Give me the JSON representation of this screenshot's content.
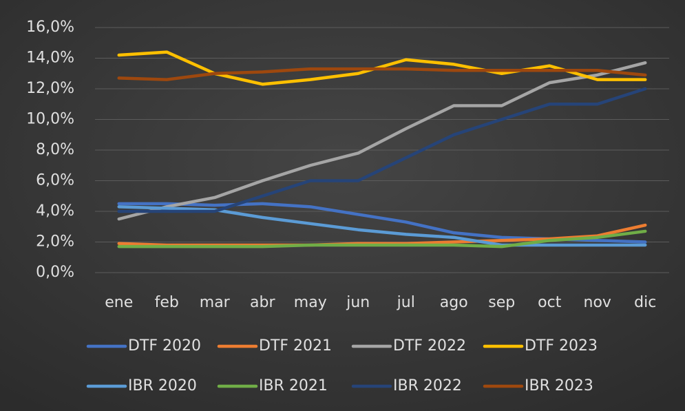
{
  "chart_data": {
    "type": "line",
    "categories": [
      "ene",
      "feb",
      "mar",
      "abr",
      "may",
      "jun",
      "jul",
      "ago",
      "sep",
      "oct",
      "nov",
      "dic"
    ],
    "series": [
      {
        "name": "DTF 2020",
        "color": "#4472c4",
        "values": [
          4.5,
          4.5,
          4.4,
          4.5,
          4.3,
          3.8,
          3.3,
          2.6,
          2.3,
          2.2,
          2.1,
          2.0
        ]
      },
      {
        "name": "DTF 2021",
        "color": "#ed7d31",
        "values": [
          1.9,
          1.8,
          1.8,
          1.8,
          1.8,
          1.9,
          1.9,
          2.0,
          2.1,
          2.2,
          2.4,
          3.1
        ]
      },
      {
        "name": "DTF 2022",
        "color": "#a5a5a5",
        "values": [
          3.5,
          4.3,
          4.9,
          6.0,
          7.0,
          7.8,
          9.4,
          10.9,
          10.9,
          12.4,
          12.9,
          13.7
        ]
      },
      {
        "name": "DTF 2023",
        "color": "#ffc000",
        "values": [
          14.2,
          14.4,
          13.0,
          12.3,
          12.6,
          13.0,
          13.9,
          13.6,
          13.0,
          13.5,
          12.6,
          12.6
        ]
      },
      {
        "name": "IBR 2020",
        "color": "#5b9bd5",
        "values": [
          4.3,
          4.2,
          4.1,
          3.6,
          3.2,
          2.8,
          2.5,
          2.3,
          1.8,
          1.8,
          1.8,
          1.8
        ]
      },
      {
        "name": "IBR 2021",
        "color": "#70ad47",
        "values": [
          1.7,
          1.7,
          1.7,
          1.7,
          1.8,
          1.8,
          1.8,
          1.8,
          1.7,
          2.1,
          2.3,
          2.7
        ]
      },
      {
        "name": "IBR 2022",
        "color": "#264478",
        "values": [
          4.0,
          4.0,
          4.0,
          5.0,
          6.0,
          6.0,
          7.5,
          9.0,
          10.0,
          11.0,
          11.0,
          12.0
        ]
      },
      {
        "name": "IBR 2023",
        "color": "#9e480e",
        "values": [
          12.7,
          12.6,
          13.0,
          13.1,
          13.3,
          13.3,
          13.3,
          13.2,
          13.2,
          13.2,
          13.2,
          12.9
        ]
      }
    ],
    "ylim": [
      0,
      16
    ],
    "yticks": [
      {
        "value": 0,
        "label": "0,0%"
      },
      {
        "value": 2,
        "label": "2,0%"
      },
      {
        "value": 4,
        "label": "4,0%"
      },
      {
        "value": 6,
        "label": "6,0%"
      },
      {
        "value": 8,
        "label": "8,0%"
      },
      {
        "value": 10,
        "label": "10,0%"
      },
      {
        "value": 12,
        "label": "12,0%"
      },
      {
        "value": 14,
        "label": "14,0%"
      },
      {
        "value": 16,
        "label": "16,0%"
      }
    ],
    "grid": true
  }
}
